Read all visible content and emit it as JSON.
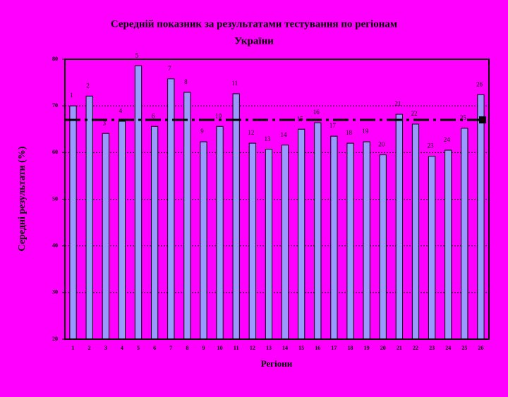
{
  "chart_data": {
    "type": "bar",
    "title": [
      "Середній показник за результатами тестування по  регіонам",
      "України"
    ],
    "x_label": "Регіони",
    "y_label": "Середні результати (%)",
    "categories": [
      "1",
      "2",
      "3",
      "4",
      "5",
      "6",
      "7",
      "8",
      "9",
      "10",
      "11",
      "12",
      "13",
      "14",
      "15",
      "16",
      "17",
      "18",
      "19",
      "20",
      "21",
      "22",
      "23",
      "24",
      "25",
      "26"
    ],
    "values": [
      70.0,
      72.1,
      64.1,
      66.7,
      78.6,
      65.6,
      75.8,
      72.9,
      62.3,
      65.6,
      72.6,
      62.0,
      60.7,
      61.6,
      65.0,
      66.4,
      63.5,
      62.0,
      62.3,
      59.5,
      68.2,
      66.1,
      59.2,
      60.5,
      65.2,
      72.4
    ],
    "average": 67.0,
    "color": "#9999ff",
    "ylim": [
      20,
      80
    ],
    "yticks": [
      20,
      30,
      40,
      50,
      60,
      70,
      80
    ],
    "grid": true
  }
}
